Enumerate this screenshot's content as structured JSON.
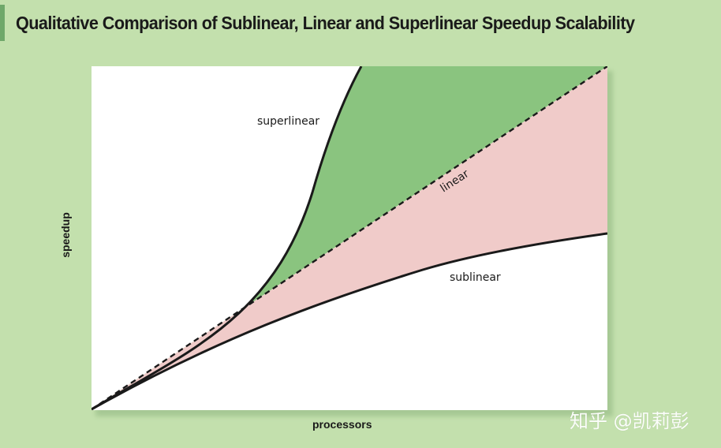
{
  "title": "Qualitative Comparison of Sublinear, Linear and Superlinear Speedup Scalability",
  "axes": {
    "xlabel": "processors",
    "ylabel": "speedup"
  },
  "curves": {
    "superlinear": "superlinear",
    "linear": "linear",
    "sublinear": "sublinear"
  },
  "colors": {
    "background": "#c3e0ad",
    "superlinear_region": "#8ac47f",
    "sublinear_region": "#f0cbc9",
    "plot_area": "#ffffff",
    "lines": "#1a1a1a"
  },
  "watermark": "知乎 @凯莉彭"
}
